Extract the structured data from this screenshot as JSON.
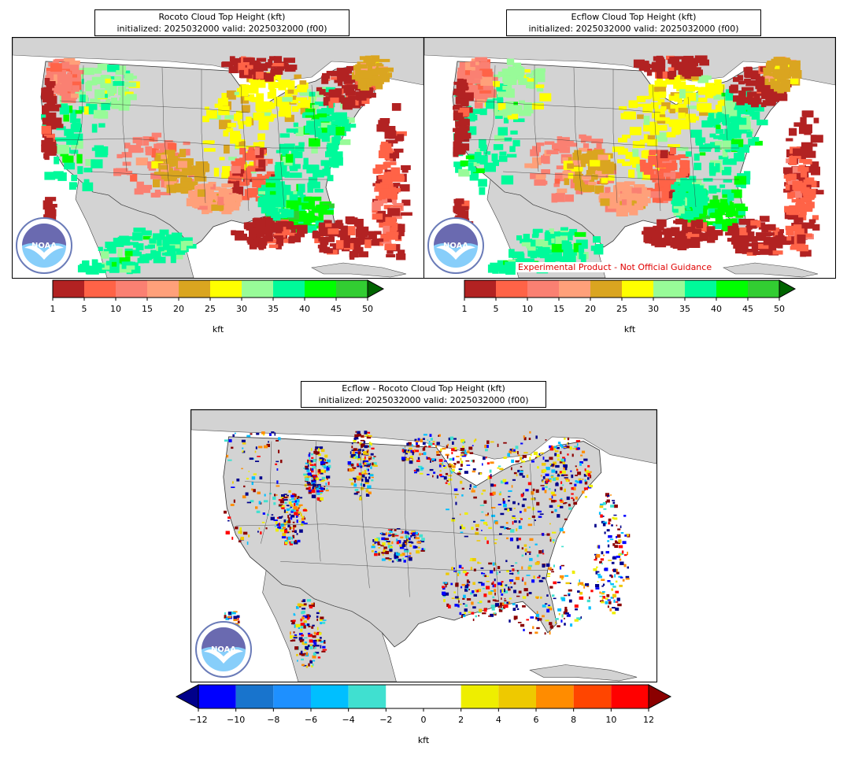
{
  "panels": [
    {
      "id": "rocoto",
      "title_line1": "Rocoto Cloud Top Height (kft)",
      "title_line2": "initialized: 2025032000 valid: 2025032000 (f00)"
    },
    {
      "id": "ecflow",
      "title_line1": "Ecflow Cloud Top Height (kft)",
      "title_line2": "initialized: 2025032000 valid: 2025032000 (f00)",
      "notice": "Experimental Product - Not Official Guidance"
    },
    {
      "id": "diff",
      "title_line1": "Ecflow - Rocoto Cloud Top Height (kft)",
      "title_line2": "initialized: 2025032000 valid: 2025032000 (f00)"
    }
  ],
  "colorbar_height": {
    "label": "kft",
    "ticks": [
      "1",
      "5",
      "10",
      "15",
      "20",
      "25",
      "30",
      "35",
      "40",
      "45",
      "50"
    ],
    "colors": [
      "#b22222",
      "#ff6347",
      "#fa8072",
      "#ffa07a",
      "#daa520",
      "#ffff00",
      "#98fb98",
      "#00fa9a",
      "#00ff00",
      "#32cd32"
    ],
    "extend_color": "#006400"
  },
  "colorbar_diff": {
    "label": "kft",
    "ticks": [
      "−12",
      "−10",
      "−8",
      "−6",
      "−4",
      "−2",
      "0",
      "2",
      "4",
      "6",
      "8",
      "10",
      "12"
    ],
    "colors": [
      "#0000ff",
      "#1874cd",
      "#1e90ff",
      "#00bfff",
      "#40e0d0",
      "#ffffff",
      "#ffffff",
      "#eeee00",
      "#eec900",
      "#ff8c00",
      "#ff4500",
      "#ff0000"
    ],
    "extend_low_color": "#00008b",
    "extend_high_color": "#8b0000"
  },
  "colors": {
    "land": "#d3d3d3",
    "ocean": "#ffffff",
    "border": "#333333"
  },
  "logo_text": "NOAA"
}
